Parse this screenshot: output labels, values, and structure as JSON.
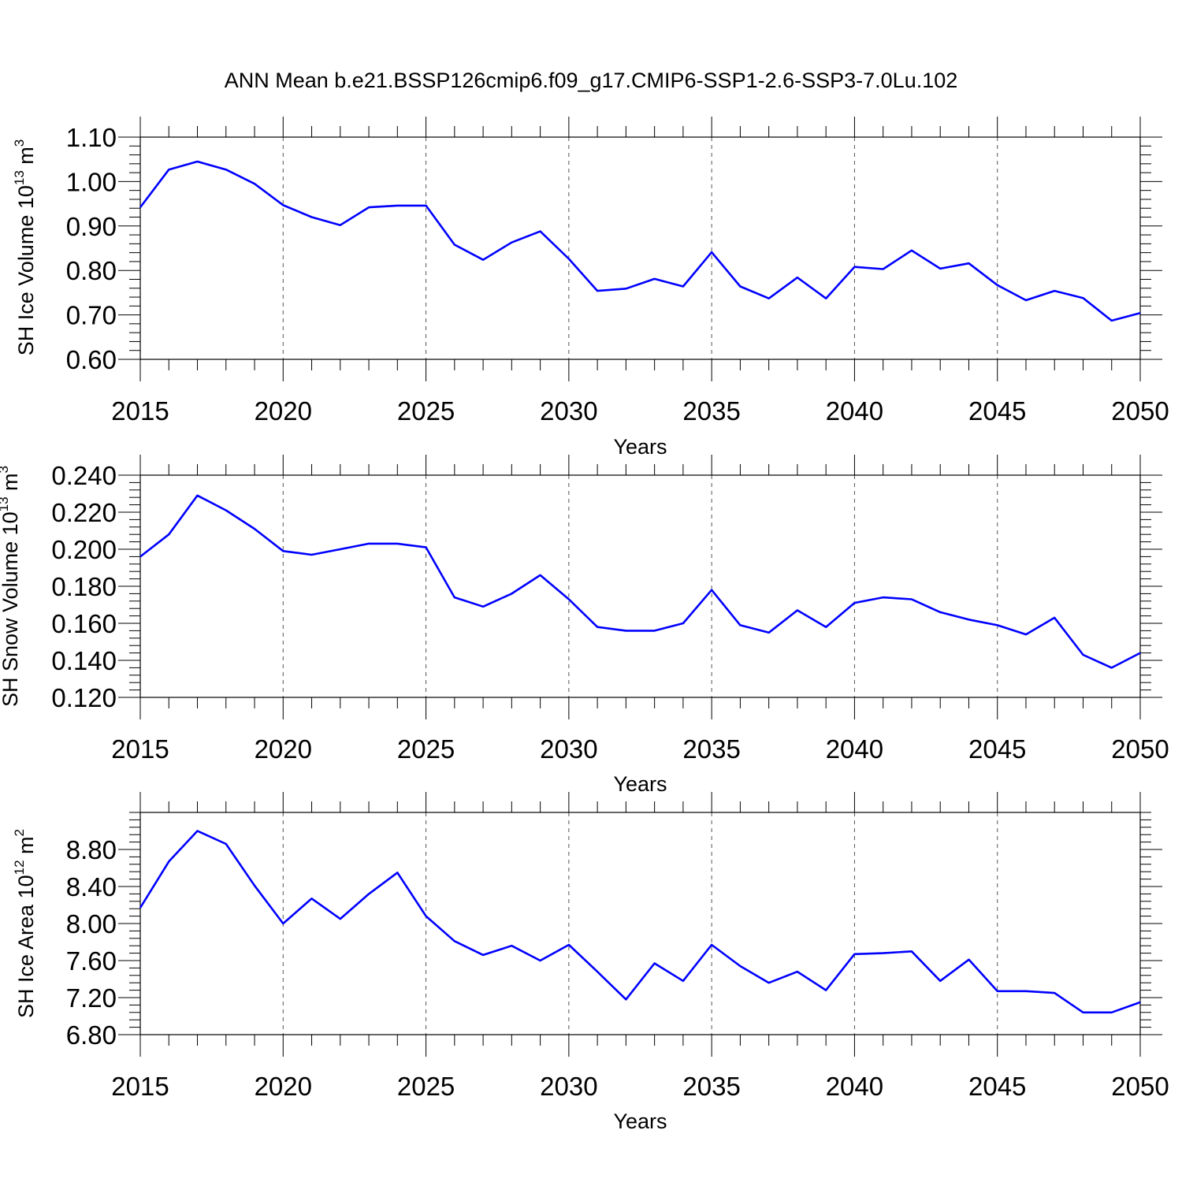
{
  "title": "ANN Mean b.e21.BSSP126cmip6.f09_g17.CMIP6-SSP1-2.6-SSP3-7.0Lu.102",
  "chart_data": [
    {
      "type": "line",
      "ylabel": {
        "main": "SH Ice Volume 10",
        "exp": "13",
        "unit": " m",
        "unit_exp": "3"
      },
      "xlabel": "Years",
      "xlim": [
        2015,
        2050
      ],
      "ylim": [
        0.6,
        1.1
      ],
      "yticks": [
        "0.60",
        "0.70",
        "0.80",
        "0.90",
        "1.00",
        "1.10"
      ],
      "ytick_values": [
        0.6,
        0.7,
        0.8,
        0.9,
        1.0,
        1.1
      ],
      "xticks": [
        2015,
        2020,
        2025,
        2030,
        2035,
        2040,
        2045,
        2050
      ],
      "x": [
        2015,
        2016,
        2017,
        2018,
        2019,
        2020,
        2021,
        2022,
        2023,
        2024,
        2025,
        2026,
        2027,
        2028,
        2029,
        2030,
        2031,
        2032,
        2033,
        2034,
        2035,
        2036,
        2037,
        2038,
        2039,
        2040,
        2041,
        2042,
        2043,
        2044,
        2045,
        2046,
        2047,
        2048,
        2049,
        2050
      ],
      "values": [
        0.942,
        1.027,
        1.045,
        1.027,
        0.995,
        0.947,
        0.92,
        0.902,
        0.942,
        0.946,
        0.946,
        0.858,
        0.824,
        0.863,
        0.888,
        0.826,
        0.754,
        0.759,
        0.781,
        0.764,
        0.841,
        0.764,
        0.737,
        0.784,
        0.737,
        0.808,
        0.803,
        0.845,
        0.804,
        0.816,
        0.767,
        0.733,
        0.754,
        0.738,
        0.687,
        0.704
      ],
      "color": "#0000ff",
      "grid": "vertical dashed"
    },
    {
      "type": "line",
      "ylabel": {
        "main": "SH Snow Volume 10",
        "exp": "13",
        "unit": " m",
        "unit_exp": "3"
      },
      "xlabel": "Years",
      "xlim": [
        2015,
        2050
      ],
      "ylim": [
        0.12,
        0.24
      ],
      "yticks": [
        "0.120",
        "0.140",
        "0.160",
        "0.180",
        "0.200",
        "0.220",
        "0.240"
      ],
      "ytick_values": [
        0.12,
        0.14,
        0.16,
        0.18,
        0.2,
        0.22,
        0.24
      ],
      "xticks": [
        2015,
        2020,
        2025,
        2030,
        2035,
        2040,
        2045,
        2050
      ],
      "x": [
        2015,
        2016,
        2017,
        2018,
        2019,
        2020,
        2021,
        2022,
        2023,
        2024,
        2025,
        2026,
        2027,
        2028,
        2029,
        2030,
        2031,
        2032,
        2033,
        2034,
        2035,
        2036,
        2037,
        2038,
        2039,
        2040,
        2041,
        2042,
        2043,
        2044,
        2045,
        2046,
        2047,
        2048,
        2049,
        2050
      ],
      "values": [
        0.196,
        0.208,
        0.229,
        0.221,
        0.211,
        0.199,
        0.197,
        0.2,
        0.203,
        0.203,
        0.201,
        0.174,
        0.169,
        0.176,
        0.186,
        0.173,
        0.158,
        0.156,
        0.156,
        0.16,
        0.178,
        0.159,
        0.155,
        0.167,
        0.158,
        0.171,
        0.174,
        0.173,
        0.166,
        0.162,
        0.159,
        0.154,
        0.163,
        0.143,
        0.136,
        0.144
      ],
      "color": "#0000ff",
      "grid": "vertical dashed"
    },
    {
      "type": "line",
      "ylabel": {
        "main": "SH Ice Area 10",
        "exp": "12",
        "unit": " m",
        "unit_exp": "2"
      },
      "xlabel": "Years",
      "xlim": [
        2015,
        2050
      ],
      "ylim": [
        6.8,
        9.2
      ],
      "yticks": [
        "6.80",
        "7.20",
        "7.60",
        "8.00",
        "8.40",
        "8.80"
      ],
      "ytick_values": [
        6.8,
        7.2,
        7.6,
        8.0,
        8.4,
        8.8
      ],
      "xticks": [
        2015,
        2020,
        2025,
        2030,
        2035,
        2040,
        2045,
        2050
      ],
      "x": [
        2015,
        2016,
        2017,
        2018,
        2019,
        2020,
        2021,
        2022,
        2023,
        2024,
        2025,
        2026,
        2027,
        2028,
        2029,
        2030,
        2031,
        2032,
        2033,
        2034,
        2035,
        2036,
        2037,
        2038,
        2039,
        2040,
        2041,
        2042,
        2043,
        2044,
        2045,
        2046,
        2047,
        2048,
        2049,
        2050
      ],
      "values": [
        8.17,
        8.67,
        9.0,
        8.86,
        8.41,
        8.0,
        8.27,
        8.05,
        8.32,
        8.55,
        8.08,
        7.81,
        7.66,
        7.76,
        7.6,
        7.77,
        7.48,
        7.18,
        7.57,
        7.38,
        7.77,
        7.54,
        7.36,
        7.48,
        7.28,
        7.67,
        7.68,
        7.7,
        7.38,
        7.61,
        7.27,
        7.27,
        7.25,
        7.04,
        7.04,
        7.15
      ],
      "color": "#0000ff",
      "grid": "vertical dashed"
    }
  ]
}
